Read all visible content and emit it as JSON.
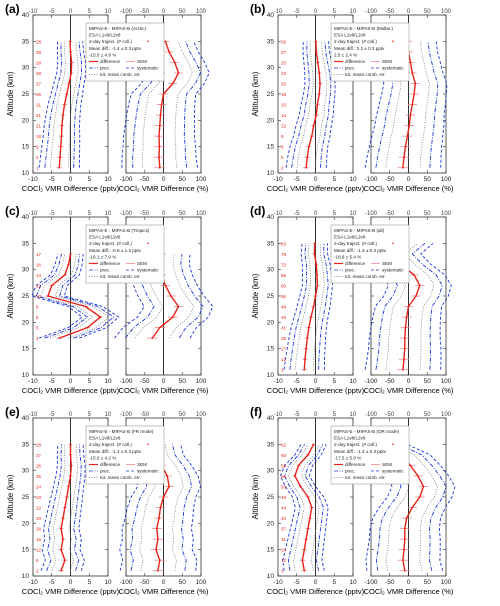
{
  "figure": {
    "y_axis_label": "Altitude (km)",
    "x_label_abs": "COCl₂ VMR Difference (pptv)",
    "x_label_rel": "COCl₂ VMR Difference (%)",
    "abs_ticks": [
      "-10",
      "-5",
      "0",
      "5",
      "10"
    ],
    "rel_ticks": [
      "-100",
      "-50",
      "0",
      "50",
      "100"
    ],
    "alt_ticks": [
      "10",
      "15",
      "20",
      "25",
      "30",
      "35",
      "40"
    ],
    "colors": {
      "difference": "#e8231b",
      "precision": "#1a36d8",
      "systematic": "#1a36d8",
      "sem": "#ee8a8a",
      "total_error": "#7a7a7a",
      "profile_numbers": "#e8231b"
    }
  },
  "chart_data": [
    {
      "panel": "(a)",
      "type": "line",
      "legend": [
        "MIPAS-E - MIPAS-B (Arctic)",
        "ESA L1v8/L2v8",
        "2-day traject. (# coll.)",
        "Mean diff.: -1.4 ± 0.3 pptv",
        "-15.0 ± 4.9 %"
      ],
      "legend_keys": [
        "difference",
        "SEM",
        "prec.",
        "systematic",
        "tot. mean comb. err."
      ],
      "altitude_km": [
        11,
        13,
        15,
        17,
        19,
        21,
        23,
        25,
        27,
        29,
        31,
        33,
        35
      ],
      "diff_pptv": [
        -3.0,
        -2.8,
        -2.6,
        -2.4,
        -2.3,
        -2.0,
        -1.6,
        -1.0,
        -0.4,
        0.2,
        0.3,
        0.0,
        -0.1
      ],
      "diff_percent": [
        -10,
        -12,
        -11,
        -12,
        -10,
        -8,
        -5,
        0,
        25,
        40,
        30,
        15,
        5
      ],
      "coll_numbers": [
        "1",
        "2",
        "9",
        "18",
        "21",
        "21",
        "21",
        "26",
        "27",
        "28",
        "28",
        "28",
        "28"
      ],
      "xlim_abs": [
        -10,
        10
      ],
      "xlim_rel": [
        -100,
        100
      ],
      "ylim": [
        10,
        40
      ]
    },
    {
      "panel": "(b)",
      "type": "line",
      "legend": [
        "MIPAS-E - MIPAS-B (Midlat.)",
        "ESA L1v8/L2v8",
        "2-day traject. (# coll.)",
        "Mean diff.: 0.2 ± 0.3 pptv",
        "2.5 ± 2.4 %"
      ],
      "legend_keys": [
        "difference",
        "SEM",
        "prec.",
        "systematic",
        "tot. mean comb. err."
      ],
      "altitude_km": [
        11,
        13,
        15,
        17,
        19,
        21,
        23,
        25,
        27,
        29,
        31,
        33,
        35
      ],
      "diff_pptv": [
        -2.5,
        -2.2,
        -1.8,
        -1.0,
        -0.5,
        0.2,
        0.5,
        1.0,
        1.2,
        1.0,
        0.6,
        0.2,
        0.1
      ],
      "diff_percent": [
        -15,
        -12,
        -8,
        -3,
        2,
        5,
        10,
        15,
        18,
        10,
        5,
        0,
        -2
      ],
      "coll_numbers": [
        "2",
        "5",
        "8",
        "9",
        "12",
        "14",
        "15",
        "18",
        "20",
        "23",
        "25",
        "27",
        "29"
      ],
      "xlim_abs": [
        -10,
        10
      ],
      "xlim_rel": [
        -100,
        100
      ],
      "ylim": [
        10,
        40
      ]
    },
    {
      "panel": "(c)",
      "type": "line",
      "legend": [
        "MIPAS-E - MIPAS-B (Tropics)",
        "ESA L1v8/L2v8",
        "2-day traject. (# coll.)",
        "Mean diff.: -0.6 ± 1.2 pptv",
        "-16.1 ± 7.9 %"
      ],
      "legend_keys": [
        "difference",
        "SEM",
        "prec.",
        "systematic",
        "tot. mean comb. err."
      ],
      "altitude_km": [
        17,
        19,
        21,
        23,
        25,
        27,
        29,
        31,
        33
      ],
      "diff_pptv": [
        -3.0,
        4.5,
        8.0,
        4.0,
        -6.0,
        -5.0,
        -1.5,
        -0.5,
        0.0
      ],
      "diff_percent": [
        -30,
        -10,
        25,
        40,
        20,
        5,
        -5,
        -10,
        -5
      ],
      "coll_numbers": [
        "3",
        "5",
        "6",
        "8",
        "10",
        "12",
        "14",
        "16",
        "17"
      ],
      "xlim_abs": [
        -10,
        10
      ],
      "xlim_rel": [
        -100,
        100
      ],
      "ylim": [
        10,
        40
      ]
    },
    {
      "panel": "(d)",
      "type": "line",
      "legend": [
        "MIPAS-E - MIPAS-B (all)",
        "ESA L1v8/L2v8",
        "2-day traject. (# coll.)",
        "Mean diff.: -1.3 ± 0.3 pptv",
        "-18.9 ± 5.4 %"
      ],
      "legend_keys": [
        "difference",
        "SEM",
        "prec.",
        "systematic",
        "tot. mean comb. err."
      ],
      "altitude_km": [
        11,
        13,
        15,
        17,
        19,
        21,
        23,
        25,
        27,
        29,
        31,
        33,
        35
      ],
      "diff_pptv": [
        -3.0,
        -2.8,
        -2.5,
        -2.2,
        -1.8,
        -1.2,
        -0.5,
        0.0,
        0.5,
        0.4,
        0.2,
        -0.3,
        -0.2
      ],
      "diff_percent": [
        -15,
        -12,
        -10,
        -10,
        -8,
        -5,
        0,
        20,
        30,
        15,
        -20,
        -45,
        -10
      ],
      "coll_numbers": [
        "3",
        "12",
        "27",
        "35",
        "41",
        "46",
        "48",
        "56",
        "60",
        "66",
        "72",
        "78",
        "83"
      ],
      "xlim_abs": [
        -10,
        10
      ],
      "xlim_rel": [
        -100,
        100
      ],
      "ylim": [
        10,
        40
      ]
    },
    {
      "panel": "(e)",
      "type": "line",
      "legend": [
        "MIPAS-E - MIPAS-B (FR mode)",
        "ESA L1v8/L2v8",
        "2-day traject. (# coll.)",
        "Mean diff.: -1.2 ± 0.3 pptv",
        "-15.6 ± 4.2 %"
      ],
      "legend_keys": [
        "difference",
        "SEM",
        "prec.",
        "systematic",
        "tot. mean comb. err."
      ],
      "altitude_km": [
        11,
        13,
        15,
        17,
        19,
        21,
        23,
        25,
        27,
        29,
        31,
        33,
        35
      ],
      "diff_pptv": [
        -2.5,
        -1.5,
        -2.5,
        -2.0,
        -2.5,
        -2.0,
        -1.5,
        -1.0,
        -0.5,
        0.0,
        0.2,
        0.0,
        0.0
      ],
      "diff_percent": [
        -15,
        -10,
        -20,
        -15,
        -18,
        -12,
        -8,
        0,
        15,
        10,
        -5,
        -25,
        -30
      ],
      "coll_numbers": [
        "2",
        "6",
        "12",
        "16",
        "18",
        "20",
        "22",
        "23",
        "24",
        "25",
        "26",
        "27",
        "28"
      ],
      "xlim_abs": [
        -10,
        10
      ],
      "xlim_rel": [
        -100,
        100
      ],
      "ylim": [
        10,
        40
      ]
    },
    {
      "panel": "(f)",
      "type": "line",
      "legend": [
        "MIPAS-E - MIPAS-B (OR mode)",
        "ESA L1v8/L2v8",
        "2-day traject. (# coll.)",
        "Mean diff.: -1.4 ± 0.3 pptv",
        "-17.5 ± 5.8 %"
      ],
      "legend_keys": [
        "difference",
        "SEM",
        "prec.",
        "systematic",
        "tot. mean comb. err."
      ],
      "altitude_km": [
        11,
        13,
        15,
        17,
        19,
        21,
        23,
        25,
        27,
        29,
        31,
        33,
        35
      ],
      "diff_pptv": [
        -3.0,
        -3.5,
        -3.0,
        -2.5,
        -2.0,
        -1.5,
        -1.0,
        -2.0,
        -4.0,
        -5.5,
        -4.5,
        -2.0,
        -0.5
      ],
      "diff_percent": [
        -10,
        -15,
        -12,
        -10,
        -10,
        -5,
        10,
        30,
        40,
        25,
        5,
        -20,
        -80
      ],
      "coll_numbers": [
        "3",
        "12",
        "24",
        "31",
        "37",
        "40",
        "44",
        "49",
        "53",
        "56",
        "58",
        "60",
        "62"
      ],
      "xlim_abs": [
        -10,
        10
      ],
      "xlim_rel": [
        -100,
        100
      ],
      "ylim": [
        10,
        40
      ]
    }
  ]
}
